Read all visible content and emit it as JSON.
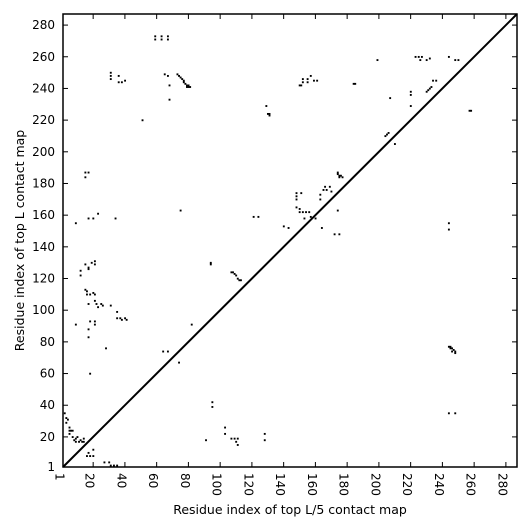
{
  "chart_data": {
    "type": "scatter",
    "xlabel": "Residue index of top L/5 contact map",
    "ylabel": "Residue index of top L contact map",
    "xlim": [
      1,
      287
    ],
    "ylim": [
      1,
      287
    ],
    "x_ticks": [
      1,
      20,
      40,
      60,
      80,
      100,
      120,
      140,
      160,
      180,
      200,
      220,
      240,
      260,
      280
    ],
    "y_ticks": [
      1,
      20,
      40,
      60,
      80,
      100,
      120,
      140,
      160,
      180,
      200,
      220,
      240,
      260,
      280
    ],
    "diagonal": true,
    "grid": false,
    "marker_color": "#000000",
    "series": [
      {
        "note": "upper-left triangle (top L contacts)",
        "points": [
          [
            59,
            273
          ],
          [
            59,
            271
          ],
          [
            63,
            273
          ],
          [
            63,
            271
          ],
          [
            67,
            273
          ],
          [
            67,
            271
          ],
          [
            31,
            250
          ],
          [
            31,
            248
          ],
          [
            31,
            246
          ],
          [
            36,
            248
          ],
          [
            36,
            244
          ],
          [
            40,
            245
          ],
          [
            38,
            244
          ],
          [
            65,
            249
          ],
          [
            67,
            248
          ],
          [
            68,
            233
          ],
          [
            68,
            242
          ],
          [
            73,
            249
          ],
          [
            74,
            248
          ],
          [
            75,
            247
          ],
          [
            76,
            246
          ],
          [
            77,
            245
          ],
          [
            77,
            244
          ],
          [
            78,
            243
          ],
          [
            79,
            242
          ],
          [
            79,
            241
          ],
          [
            80,
            242
          ],
          [
            80,
            241
          ],
          [
            81,
            241
          ],
          [
            51,
            220
          ],
          [
            129,
            229
          ],
          [
            130,
            224
          ],
          [
            131,
            223
          ],
          [
            131,
            224
          ],
          [
            184,
            243
          ],
          [
            185,
            243
          ],
          [
            199,
            258
          ],
          [
            204,
            210
          ],
          [
            205,
            211
          ],
          [
            206,
            212
          ],
          [
            207,
            234
          ],
          [
            210,
            205
          ],
          [
            220,
            229
          ],
          [
            220,
            236
          ],
          [
            220,
            238
          ],
          [
            223,
            260
          ],
          [
            225,
            260
          ],
          [
            226,
            258
          ],
          [
            227,
            260
          ],
          [
            230,
            258
          ],
          [
            232,
            259
          ],
          [
            230,
            238
          ],
          [
            231,
            239
          ],
          [
            232,
            240
          ],
          [
            233,
            241
          ],
          [
            234,
            245
          ],
          [
            236,
            245
          ],
          [
            244,
            260
          ],
          [
            248,
            258
          ],
          [
            250,
            258
          ],
          [
            257,
            226
          ],
          [
            258,
            226
          ],
          [
            150,
            242
          ],
          [
            151,
            242
          ],
          [
            152,
            244
          ],
          [
            152,
            246
          ],
          [
            155,
            244
          ],
          [
            155,
            246
          ],
          [
            157,
            248
          ],
          [
            159,
            245
          ],
          [
            161,
            245
          ],
          [
            174,
            186
          ],
          [
            175,
            185
          ],
          [
            175,
            184
          ],
          [
            176,
            185
          ],
          [
            177,
            184
          ],
          [
            174,
            187
          ],
          [
            148,
            174
          ],
          [
            148,
            172
          ],
          [
            148,
            170
          ],
          [
            151,
            174
          ],
          [
            150,
            164
          ],
          [
            148,
            165
          ],
          [
            150,
            162
          ],
          [
            152,
            162
          ],
          [
            154,
            162
          ],
          [
            153,
            158
          ],
          [
            157,
            159
          ],
          [
            160,
            158
          ],
          [
            163,
            170
          ],
          [
            163,
            173
          ],
          [
            164,
            152
          ],
          [
            165,
            176
          ],
          [
            166,
            178
          ],
          [
            167,
            176
          ],
          [
            169,
            178
          ],
          [
            170,
            175
          ],
          [
            172,
            148
          ],
          [
            175,
            148
          ],
          [
            174,
            163
          ],
          [
            156,
            162
          ],
          [
            121,
            159
          ],
          [
            124,
            159
          ],
          [
            140,
            153
          ],
          [
            143,
            152
          ],
          [
            107,
            124
          ],
          [
            108,
            124
          ],
          [
            109,
            123
          ],
          [
            110,
            122
          ],
          [
            111,
            120
          ],
          [
            112,
            119
          ],
          [
            113,
            119
          ],
          [
            94,
            130
          ],
          [
            94,
            129
          ],
          [
            75,
            163
          ],
          [
            15,
            187
          ],
          [
            17,
            187
          ],
          [
            17,
            158
          ],
          [
            20,
            158
          ],
          [
            23,
            161
          ],
          [
            34,
            158
          ],
          [
            15,
            184
          ],
          [
            9,
            155
          ],
          [
            12,
            122
          ],
          [
            12,
            125
          ],
          [
            17,
            126
          ],
          [
            15,
            129
          ],
          [
            17,
            127
          ],
          [
            19,
            130
          ],
          [
            21,
            129
          ],
          [
            21,
            131
          ],
          [
            15,
            113
          ],
          [
            16,
            112
          ],
          [
            18,
            110
          ],
          [
            20,
            111
          ],
          [
            21,
            110
          ],
          [
            21,
            106
          ],
          [
            22,
            104
          ],
          [
            23,
            102
          ],
          [
            25,
            104
          ],
          [
            26,
            103
          ],
          [
            17,
            104
          ],
          [
            16,
            110
          ],
          [
            18,
            93
          ],
          [
            17,
            88
          ],
          [
            17,
            83
          ],
          [
            31,
            103
          ],
          [
            35,
            99
          ],
          [
            35,
            95
          ],
          [
            37,
            95
          ],
          [
            38,
            94
          ],
          [
            40,
            95
          ],
          [
            41,
            94
          ],
          [
            9,
            91
          ],
          [
            21,
            93
          ],
          [
            21,
            91
          ],
          [
            82,
            91
          ],
          [
            28,
            76
          ],
          [
            64,
            74
          ],
          [
            67,
            74
          ],
          [
            74,
            67
          ],
          [
            18,
            60
          ]
        ]
      },
      {
        "note": "lower-right triangle (top L/5 contacts)",
        "points": [
          [
            244,
            77
          ],
          [
            245,
            77
          ],
          [
            246,
            76
          ],
          [
            247,
            75
          ],
          [
            248,
            74
          ],
          [
            248,
            73
          ],
          [
            246,
            74
          ],
          [
            245,
            76
          ],
          [
            244,
            35
          ],
          [
            248,
            35
          ],
          [
            244,
            151
          ],
          [
            244,
            155
          ],
          [
            95,
            42
          ],
          [
            95,
            39
          ],
          [
            91,
            18
          ],
          [
            103,
            26
          ],
          [
            103,
            22
          ],
          [
            107,
            19
          ],
          [
            109,
            19
          ],
          [
            110,
            17
          ],
          [
            111,
            15
          ],
          [
            111,
            19
          ],
          [
            128,
            22
          ],
          [
            128,
            18
          ],
          [
            2,
            35
          ],
          [
            3,
            32
          ],
          [
            3,
            29
          ],
          [
            4,
            31
          ],
          [
            5,
            26
          ],
          [
            5,
            24
          ],
          [
            5,
            22
          ],
          [
            6,
            24
          ],
          [
            7,
            24
          ],
          [
            7,
            20
          ],
          [
            8,
            18
          ],
          [
            9,
            19
          ],
          [
            9,
            17
          ],
          [
            10,
            20
          ],
          [
            11,
            17
          ],
          [
            12,
            18
          ],
          [
            13,
            17
          ],
          [
            14,
            19
          ],
          [
            14,
            17
          ],
          [
            16,
            8
          ],
          [
            18,
            8
          ],
          [
            20,
            12
          ],
          [
            20,
            8
          ],
          [
            17,
            10
          ],
          [
            27,
            4
          ],
          [
            30,
            4
          ],
          [
            31,
            2
          ],
          [
            33,
            2
          ],
          [
            35,
            2
          ]
        ]
      }
    ]
  }
}
